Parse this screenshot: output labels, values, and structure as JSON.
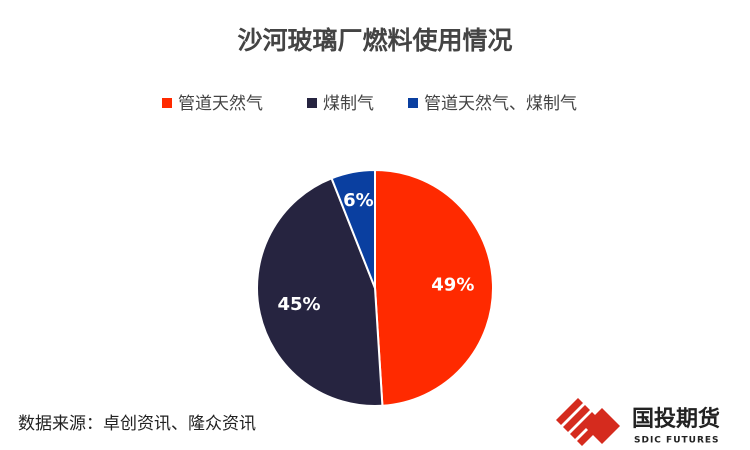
{
  "chart_data": {
    "type": "pie",
    "title": "沙河玻璃厂燃料使用情况",
    "categories": [
      "管道天然气",
      "煤制气",
      "管道天然气、煤制气"
    ],
    "values": [
      49,
      45,
      6
    ],
    "value_labels": [
      "49%",
      "45%",
      "6%"
    ],
    "colors": [
      "#ff2a00",
      "#262440",
      "#0a3fa0"
    ],
    "legend": "top",
    "source": "数据来源：卓创资讯、隆众资讯"
  },
  "logo": {
    "name": "国投期货",
    "subtitle": "SDIC FUTURES"
  }
}
